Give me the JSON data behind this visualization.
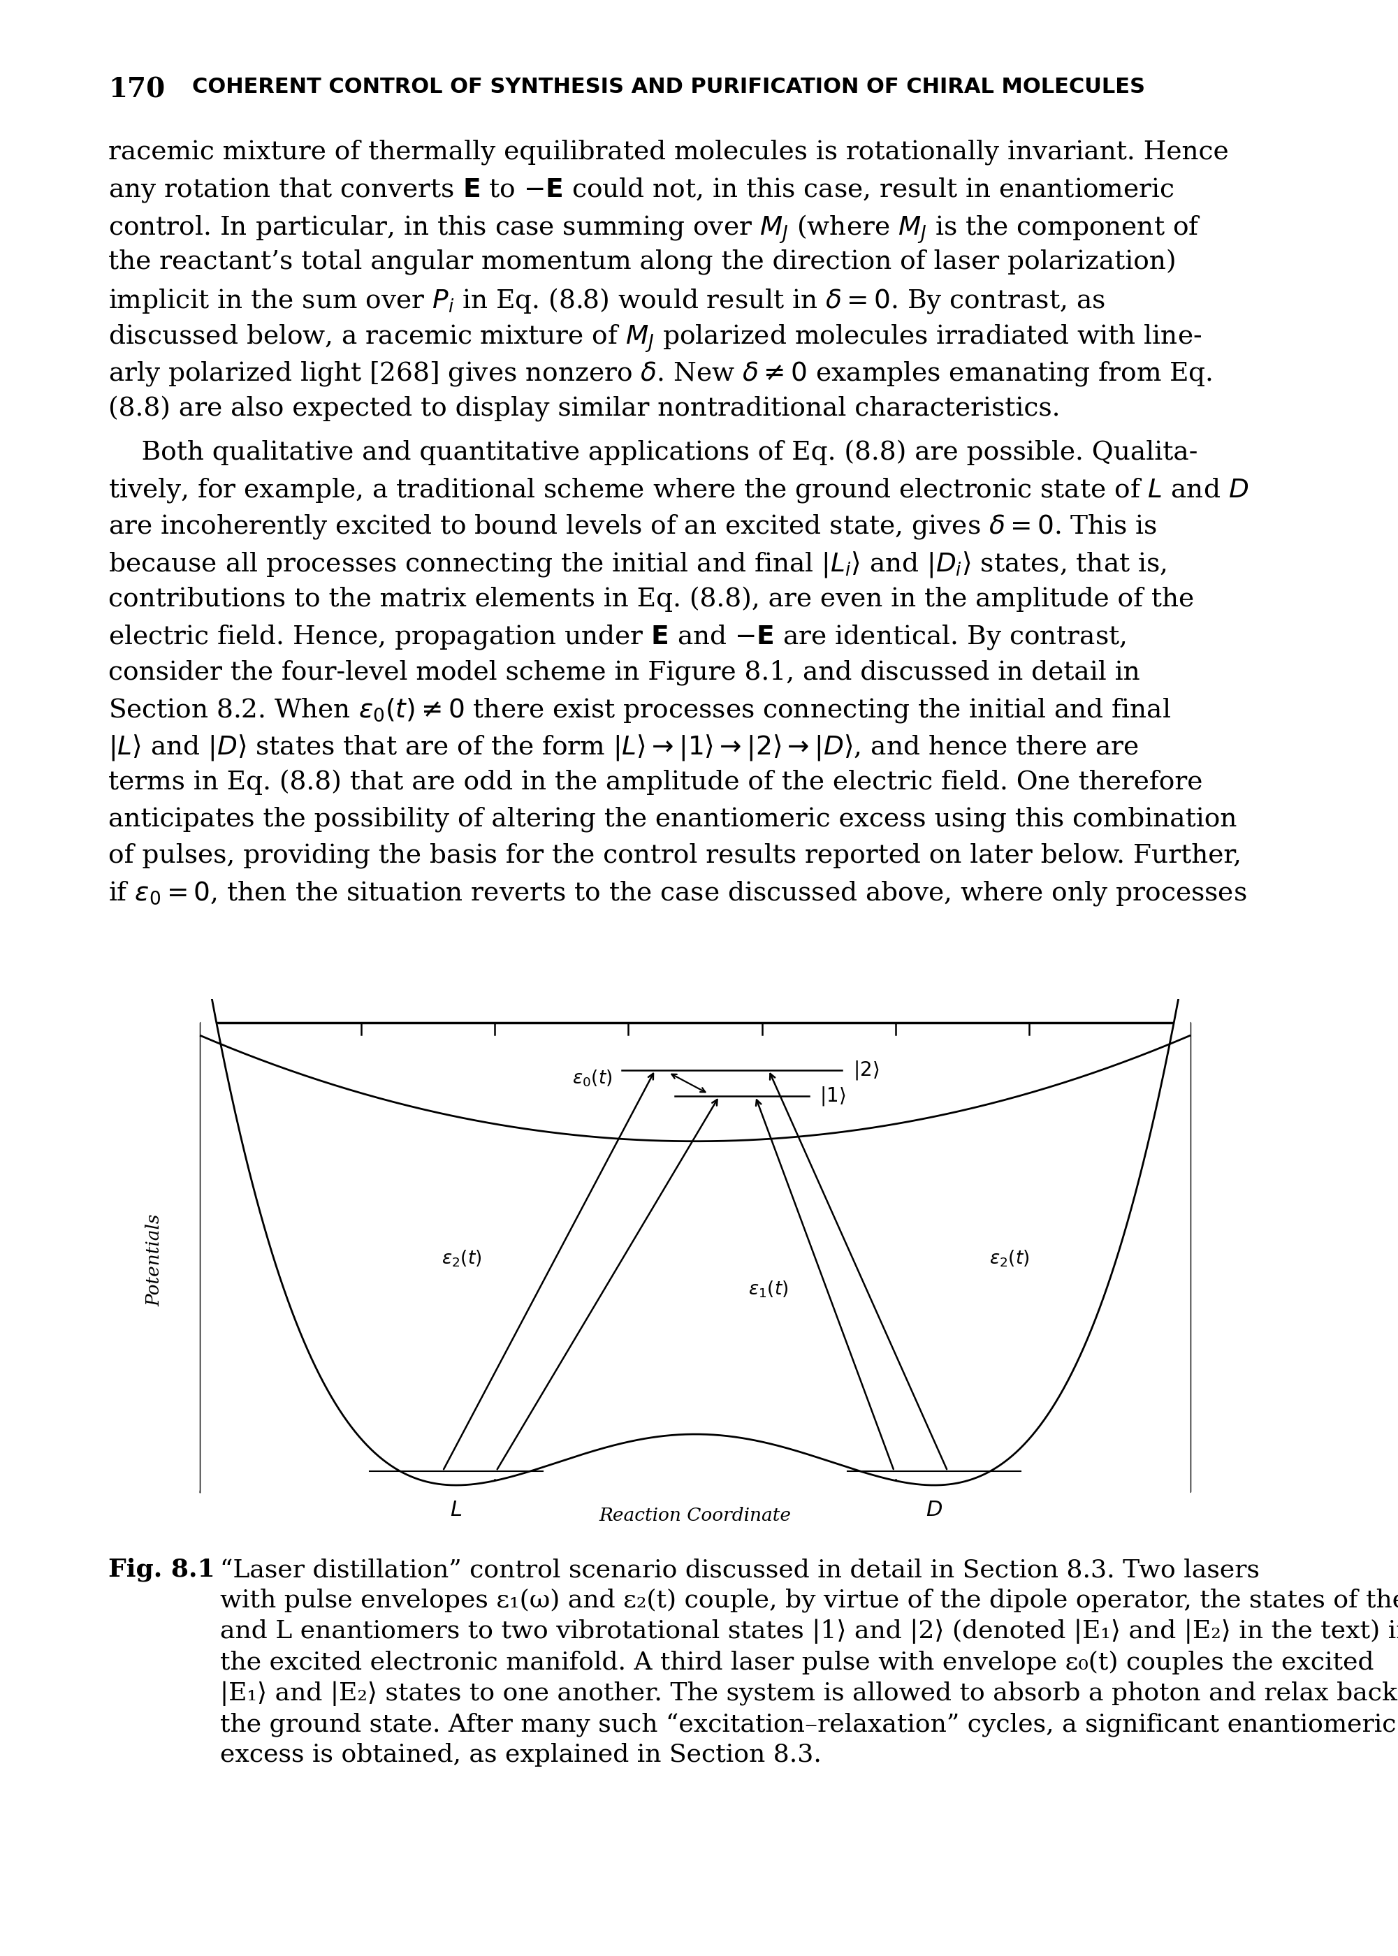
{
  "page_number": "170",
  "header": "COHERENT CONTROL OF SYNTHESIS AND PURIFICATION OF CHIRAL MOLECULES",
  "background_color": "#ffffff",
  "text_color": "#000000",
  "fig_xlabel": "Reaction Coordinate",
  "fig_ylabel": "Potentials",
  "body_lines": [
    "racemic mixture of thermally equilibrated molecules is rotationally invariant. Hence",
    "any rotation that converts \\u00a0E to \\u2212E could not, in this case, result in enantiomeric",
    "control. In particular, in this case summing over M_J (where M_J is the component of",
    "the reactant’s total angular momentum along the direction of laser polarization)",
    "implicit in the sum over P_i in Eq. (8.8) would result in \\u03b4 = 0. By contrast, as",
    "discussed below, a racemic mixture of M_J polarized molecules irradiated with line-",
    "arly polarized light [268] gives nonzero \\u03b4. New \\u03b4 \\u2260 0 examples emanating from Eq.",
    "(8.8) are also expected to display similar nontraditional characteristics.",
    "    Both qualitative and quantitative applications of Eq. (8.8) are possible. Qualita-",
    "tively, for example, a traditional scheme where the ground electronic state of L and D",
    "are incoherently excited to bound levels of an excited state, gives \\u03b4 = 0. This is",
    "because all processes connecting the initial and final |L_i\\u27e9 and |D_i\\u27e9 states, that is,",
    "contributions to the matrix elements in Eq. (8.8), are even in the amplitude of the",
    "electric field. Hence, propagation under E and \\u2212E are identical. By contrast,",
    "consider the four-level model scheme in Figure 8.1, and discussed in detail in",
    "Section 8.2. When \\u03b5_0(t) \\u2260 0 there exist processes connecting the initial and final",
    "|L\\u27e9 and |D\\u27e9 states that are of the form |L\\u27e9 \\u2192 |1\\u27e9 \\u2192 |2\\u27e9 \\u2192 |D\\u27e9, and hence there are",
    "terms in Eq. (8.8) that are odd in the amplitude of the electric field. One therefore",
    "anticipates the possibility of altering the enantiomeric excess using this combination",
    "of pulses, providing the basis for the control results reported on later below. Further,",
    "if \\u03b5_0 = 0, then the situation reverts to the case discussed above, where only processes"
  ]
}
